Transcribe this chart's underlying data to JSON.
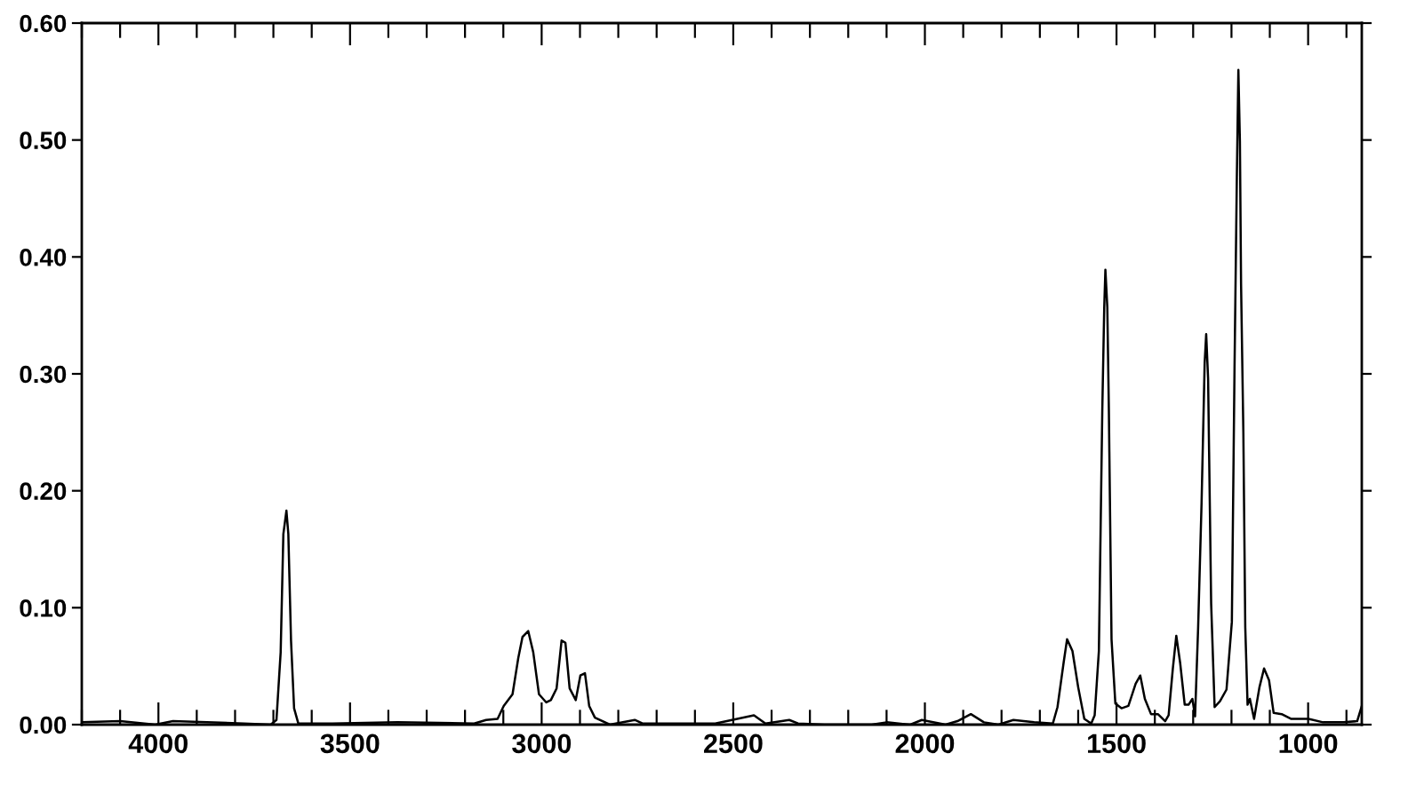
{
  "chart_data": {
    "type": "line",
    "xlim": [
      4200,
      860
    ],
    "ylim": [
      0,
      0.6
    ],
    "xticks": [
      {
        "value": 4200,
        "label": null
      },
      {
        "value": 4100,
        "label": null
      },
      4000,
      {
        "value": 3900,
        "label": null
      },
      {
        "value": 3800,
        "label": null
      },
      {
        "value": 3700,
        "label": null
      },
      {
        "value": 3600,
        "label": null
      },
      3500,
      {
        "value": 3400,
        "label": null
      },
      {
        "value": 3300,
        "label": null
      },
      {
        "value": 3200,
        "label": null
      },
      {
        "value": 3100,
        "label": null
      },
      3000,
      {
        "value": 2900,
        "label": null
      },
      {
        "value": 2800,
        "label": null
      },
      {
        "value": 2700,
        "label": null
      },
      {
        "value": 2600,
        "label": null
      },
      2500,
      {
        "value": 2400,
        "label": null
      },
      {
        "value": 2300,
        "label": null
      },
      {
        "value": 2200,
        "label": null
      },
      {
        "value": 2100,
        "label": null
      },
      2000,
      {
        "value": 1900,
        "label": null
      },
      {
        "value": 1800,
        "label": null
      },
      {
        "value": 1700,
        "label": null
      },
      {
        "value": 1600,
        "label": null
      },
      1500,
      {
        "value": 1400,
        "label": null
      },
      {
        "value": 1300,
        "label": null
      },
      {
        "value": 1200,
        "label": null
      },
      {
        "value": 1100,
        "label": null
      },
      1000,
      {
        "value": 900,
        "label": null
      }
    ],
    "yticks": [
      {
        "value": 0,
        "label": "0.00"
      },
      {
        "value": 0.1,
        "label": "0.10"
      },
      {
        "value": 0.2,
        "label": "0.20"
      },
      {
        "value": 0.3,
        "label": "0.30"
      },
      {
        "value": 0.4,
        "label": "0.40"
      },
      {
        "value": 0.5,
        "label": "0.50"
      },
      {
        "value": 0.6,
        "label": "0.60"
      }
    ],
    "grid": false,
    "legend": false,
    "marker": "none",
    "line_style": "solid",
    "series": [
      {
        "color": "#000000",
        "x": [
          4200,
          4100,
          4008,
          3962,
          3777,
          3707,
          3692,
          3681,
          3674,
          3666,
          3661,
          3654,
          3646,
          3635,
          3546,
          3376,
          3176,
          3145,
          3115,
          3099,
          3076,
          3061,
          3050,
          3035,
          3022,
          3007,
          2988,
          2976,
          2961,
          2948,
          2938,
          2927,
          2911,
          2899,
          2887,
          2876,
          2861,
          2822,
          2757,
          2737,
          2547,
          2446,
          2416,
          2354,
          2331,
          2262,
          2139,
          2100,
          2038,
          2008,
          1946,
          1915,
          1880,
          1846,
          1808,
          1769,
          1715,
          1666,
          1654,
          1638,
          1629,
          1615,
          1600,
          1584,
          1566,
          1557,
          1546,
          1537,
          1532,
          1529,
          1524,
          1520,
          1513,
          1503,
          1487,
          1469,
          1450,
          1438,
          1426,
          1410,
          1392,
          1373,
          1364,
          1353,
          1344,
          1334,
          1322,
          1312,
          1302,
          1295,
          1287,
          1278,
          1270,
          1266,
          1261,
          1253,
          1244,
          1230,
          1213,
          1199,
          1192,
          1186,
          1182,
          1178,
          1175,
          1169,
          1164,
          1158,
          1152,
          1141,
          1127,
          1115,
          1102,
          1090,
          1069,
          1045,
          999,
          961,
          907,
          872,
          860
        ],
        "values": [
          0.002,
          0.003,
          0.0,
          0.003,
          0.001,
          0.0,
          0.004,
          0.062,
          0.163,
          0.183,
          0.163,
          0.072,
          0.014,
          0.001,
          0.001,
          0.002,
          0.001,
          0.004,
          0.005,
          0.016,
          0.026,
          0.057,
          0.075,
          0.08,
          0.062,
          0.026,
          0.019,
          0.021,
          0.031,
          0.072,
          0.07,
          0.031,
          0.021,
          0.042,
          0.044,
          0.016,
          0.006,
          0.0,
          0.004,
          0.001,
          0.001,
          0.008,
          0.001,
          0.004,
          0.001,
          0.0,
          0.0,
          0.002,
          0.0,
          0.004,
          0.0,
          0.003,
          0.009,
          0.002,
          0.0,
          0.004,
          0.002,
          0.001,
          0.015,
          0.053,
          0.073,
          0.063,
          0.032,
          0.005,
          0.001,
          0.008,
          0.063,
          0.271,
          0.357,
          0.389,
          0.357,
          0.271,
          0.073,
          0.018,
          0.014,
          0.016,
          0.035,
          0.042,
          0.022,
          0.009,
          0.009,
          0.003,
          0.008,
          0.048,
          0.076,
          0.053,
          0.017,
          0.017,
          0.022,
          0.007,
          0.083,
          0.19,
          0.309,
          0.334,
          0.296,
          0.103,
          0.015,
          0.02,
          0.03,
          0.088,
          0.306,
          0.468,
          0.56,
          0.499,
          0.377,
          0.25,
          0.083,
          0.017,
          0.022,
          0.005,
          0.032,
          0.048,
          0.038,
          0.01,
          0.009,
          0.005,
          0.005,
          0.002,
          0.002,
          0.003,
          0.016
        ]
      }
    ]
  }
}
